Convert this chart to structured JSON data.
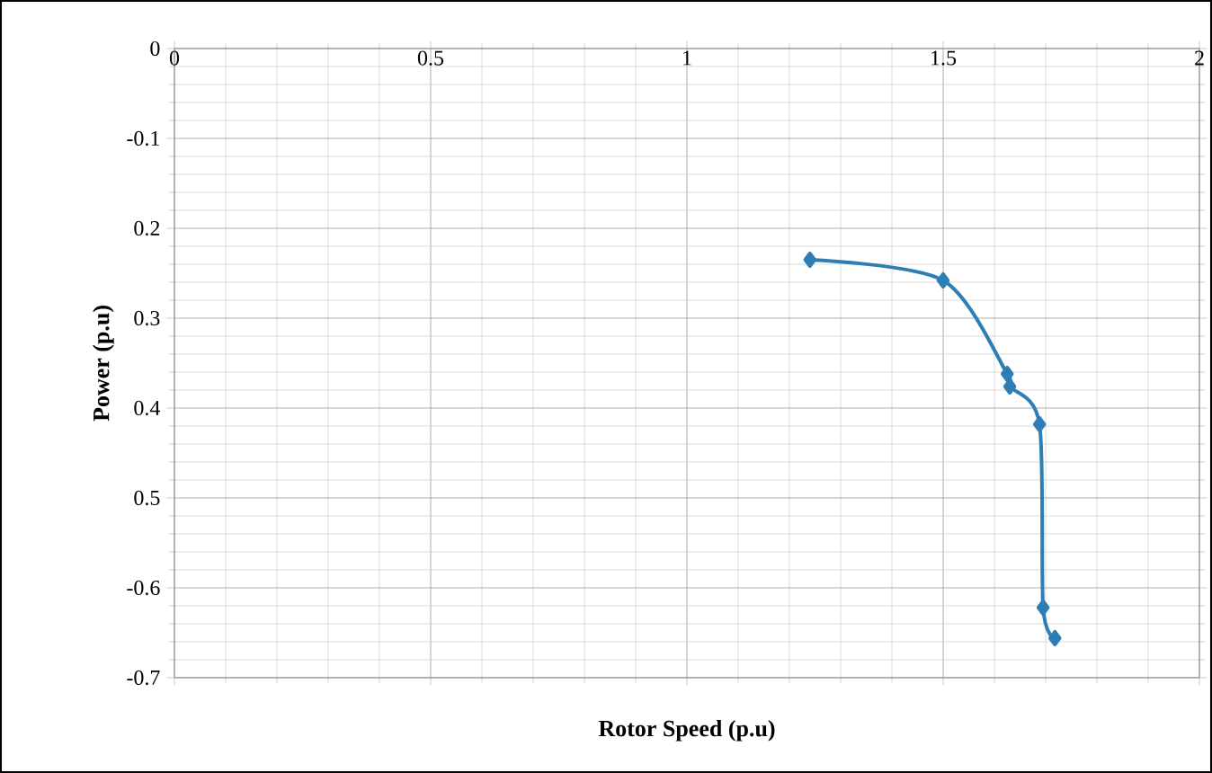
{
  "chart_data": {
    "type": "line",
    "xlabel": "Rotor Speed (p.u)",
    "ylabel": "Power (p.u)",
    "x": [
      1.24,
      1.5,
      1.625,
      1.63,
      1.688,
      1.695,
      1.718
    ],
    "series": [
      {
        "color": "#2e7db5",
        "values": [
          -0.235,
          -0.258,
          -0.362,
          -0.376,
          -0.418,
          -0.622,
          -0.656
        ]
      }
    ],
    "xlim": [
      0,
      2
    ],
    "xticks": [
      0,
      0.5,
      1,
      1.5,
      2
    ],
    "ylim": [
      -0.7,
      0
    ],
    "yticks": [
      0,
      -0.1,
      {
        "value": -0.2,
        "label": "0.2"
      },
      {
        "value": -0.3,
        "label": "0.3"
      },
      {
        "value": -0.4,
        "label": "0.4"
      },
      {
        "value": -0.5,
        "label": "0.5"
      },
      -0.6,
      -0.7
    ],
    "grid": true,
    "marker": "diamond",
    "line_style": "solid"
  }
}
